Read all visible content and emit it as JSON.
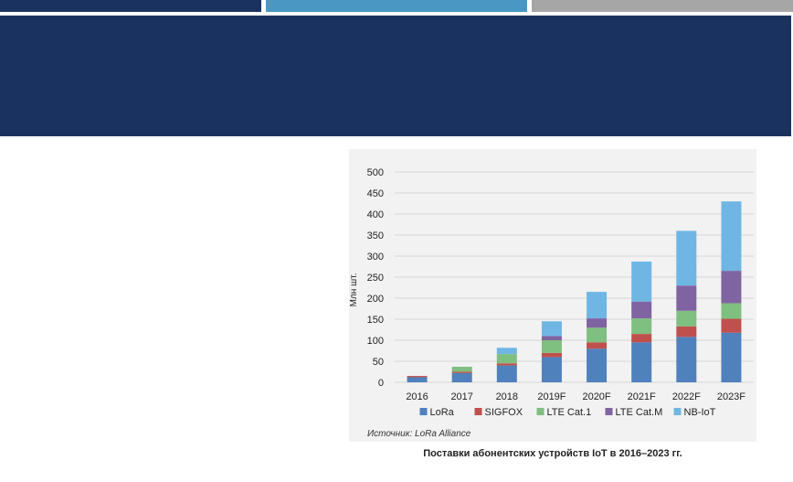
{
  "page": {
    "top_bars": [
      "#1a3260",
      "#4a97c4",
      "#a6a6a6"
    ],
    "banner_color": "#1a3260"
  },
  "chart_data": {
    "type": "bar",
    "stacked": true,
    "categories": [
      "2016",
      "2017",
      "2018",
      "2019F",
      "2020F",
      "2021F",
      "2022F",
      "2023F"
    ],
    "series": [
      {
        "name": "LoRa",
        "color": "#4f81bd",
        "values": [
          12,
          22,
          40,
          60,
          80,
          95,
          108,
          118
        ]
      },
      {
        "name": "SIGFOX",
        "color": "#c0504d",
        "values": [
          3,
          3,
          5,
          10,
          15,
          20,
          25,
          33
        ]
      },
      {
        "name": "LTE Cat.1",
        "color": "#7fbf7f",
        "values": [
          0,
          12,
          22,
          30,
          35,
          37,
          37,
          37
        ]
      },
      {
        "name": "LTE Cat.M",
        "color": "#8064a2",
        "values": [
          0,
          0,
          0,
          10,
          22,
          40,
          60,
          77
        ]
      },
      {
        "name": "NB-IoT",
        "color": "#6fb6e4",
        "values": [
          0,
          0,
          15,
          35,
          63,
          95,
          130,
          165
        ]
      }
    ],
    "ylabel": "Млн шт.",
    "ylim": [
      0,
      500
    ],
    "yticks": [
      0,
      50,
      100,
      150,
      200,
      250,
      300,
      350,
      400,
      450,
      500
    ],
    "grid": true,
    "legend": "bottom",
    "source": "Источник: LoRa Alliance",
    "caption": "Поставки абонентских устройств IoT в 2016–2023 гг."
  }
}
